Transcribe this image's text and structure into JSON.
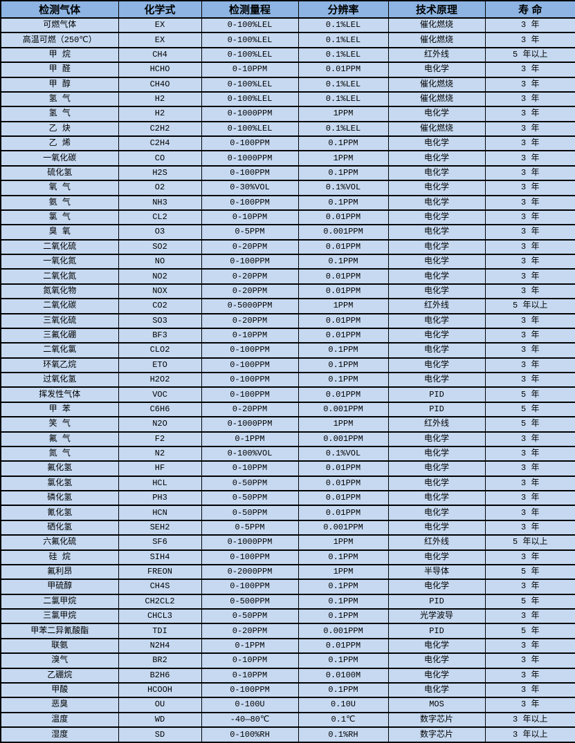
{
  "colors": {
    "header_bg": "#8DB4E2",
    "row_bg": "#C6D9F1",
    "border": "#000000",
    "text": "#000000"
  },
  "table": {
    "columns": [
      "检测气体",
      "化学式",
      "检测量程",
      "分辨率",
      "技术原理",
      "寿 命"
    ],
    "rows": [
      [
        "可燃气体",
        "EX",
        "0-100%LEL",
        "0.1%LEL",
        "催化燃烧",
        "3 年"
      ],
      [
        "高温可燃（250℃）",
        "EX",
        "0-100%LEL",
        "0.1%LEL",
        "催化燃烧",
        "3 年"
      ],
      [
        "甲 烷",
        "CH4",
        "0-100%LEL",
        "0.1%LEL",
        "红外线",
        "5 年以上"
      ],
      [
        "甲 醛",
        "HCHO",
        "0-10PPM",
        "0.01PPM",
        "电化学",
        "3 年"
      ],
      [
        "甲 醇",
        "CH4O",
        "0-100%LEL",
        "0.1%LEL",
        "催化燃烧",
        "3 年"
      ],
      [
        "氢 气",
        "H2",
        "0-100%LEL",
        "0.1%LEL",
        "催化燃烧",
        "3 年"
      ],
      [
        "氢 气",
        "H2",
        "0-1000PPM",
        "1PPM",
        "电化学",
        "3 年"
      ],
      [
        "乙 炔",
        "C2H2",
        "0-100%LEL",
        "0.1%LEL",
        "催化燃烧",
        "3 年"
      ],
      [
        "乙 烯",
        "C2H4",
        "0-100PPM",
        "0.1PPM",
        "电化学",
        "3 年"
      ],
      [
        "一氧化碳",
        "CO",
        "0-1000PPM",
        "1PPM",
        "电化学",
        "3 年"
      ],
      [
        "硫化氢",
        "H2S",
        "0-100PPM",
        "0.1PPM",
        "电化学",
        "3 年"
      ],
      [
        "氧 气",
        "O2",
        "0-30%VOL",
        "0.1%VOL",
        "电化学",
        "3 年"
      ],
      [
        "氨 气",
        "NH3",
        "0-100PPM",
        "0.1PPM",
        "电化学",
        "3 年"
      ],
      [
        "氯 气",
        "CL2",
        "0-10PPM",
        "0.01PPM",
        "电化学",
        "3 年"
      ],
      [
        "臭 氧",
        "O3",
        "0-5PPM",
        "0.001PPM",
        "电化学",
        "3 年"
      ],
      [
        "二氧化硫",
        "SO2",
        "0-20PPM",
        "0.01PPM",
        "电化学",
        "3 年"
      ],
      [
        "一氧化氮",
        "NO",
        "0-100PPM",
        "0.1PPM",
        "电化学",
        "3 年"
      ],
      [
        "二氧化氮",
        "NO2",
        "0-20PPM",
        "0.01PPM",
        "电化学",
        "3 年"
      ],
      [
        "氮氧化物",
        "NOX",
        "0-20PPM",
        "0.01PPM",
        "电化学",
        "3 年"
      ],
      [
        "二氧化碳",
        "CO2",
        "0-5000PPM",
        "1PPM",
        "红外线",
        "5 年以上"
      ],
      [
        "三氧化硫",
        "SO3",
        "0-20PPM",
        "0.01PPM",
        "电化学",
        "3 年"
      ],
      [
        "三氟化硼",
        "BF3",
        "0-10PPM",
        "0.01PPM",
        "电化学",
        "3 年"
      ],
      [
        "二氧化氯",
        "CLO2",
        "0-100PPM",
        "0.1PPM",
        "电化学",
        "3 年"
      ],
      [
        "环氧乙烷",
        "ETO",
        "0-100PPM",
        "0.1PPM",
        "电化学",
        "3 年"
      ],
      [
        "过氧化氢",
        "H2O2",
        "0-100PPM",
        "0.1PPM",
        "电化学",
        "3 年"
      ],
      [
        "挥发性气体",
        "VOC",
        "0-100PPM",
        "0.01PPM",
        "PID",
        "5 年"
      ],
      [
        "甲 苯",
        "C6H6",
        "0-20PPM",
        "0.001PPM",
        "PID",
        "5 年"
      ],
      [
        "笑 气",
        "N2O",
        "0-1000PPM",
        "1PPM",
        "红外线",
        "5 年"
      ],
      [
        "氟 气",
        "F2",
        "0-1PPM",
        "0.001PPM",
        "电化学",
        "3 年"
      ],
      [
        "氮 气",
        "N2",
        "0-100%VOL",
        "0.1%VOL",
        "电化学",
        "3 年"
      ],
      [
        "氟化氢",
        "HF",
        "0-10PPM",
        "0.01PPM",
        "电化学",
        "3 年"
      ],
      [
        "氯化氢",
        "HCL",
        "0-50PPM",
        "0.01PPM",
        "电化学",
        "3 年"
      ],
      [
        "磷化氢",
        "PH3",
        "0-50PPM",
        "0.01PPM",
        "电化学",
        "3 年"
      ],
      [
        "氰化氢",
        "HCN",
        "0-50PPM",
        "0.01PPM",
        "电化学",
        "3 年"
      ],
      [
        "硒化氢",
        "SEH2",
        "0-5PPM",
        "0.001PPM",
        "电化学",
        "3 年"
      ],
      [
        "六氟化硫",
        "SF6",
        "0-1000PPM",
        "1PPM",
        "红外线",
        "5 年以上"
      ],
      [
        "硅 烷",
        "SIH4",
        "0-100PPM",
        "0.1PPM",
        "电化学",
        "3 年"
      ],
      [
        "氟利昂",
        "FREON",
        "0-2000PPM",
        "1PPM",
        "半导体",
        "5 年"
      ],
      [
        "甲硫醇",
        "CH4S",
        "0-100PPM",
        "0.1PPM",
        "电化学",
        "3 年"
      ],
      [
        "二氯甲烷",
        "CH2CL2",
        "0-500PPM",
        "0.1PPM",
        "PID",
        "5 年"
      ],
      [
        "三氯甲烷",
        "CHCL3",
        "0-50PPM",
        "0.1PPM",
        "光学波导",
        "3 年"
      ],
      [
        "甲苯二异氰酸酯",
        "TDI",
        "0-20PPM",
        "0.001PPM",
        "PID",
        "5 年"
      ],
      [
        "联氨",
        "N2H4",
        "0-1PPM",
        "0.01PPM",
        "电化学",
        "3 年"
      ],
      [
        "溴气",
        "BR2",
        "0-10PPM",
        "0.1PPM",
        "电化学",
        "3 年"
      ],
      [
        "乙硼烷",
        "B2H6",
        "0-10PPM",
        "0.0100M",
        "电化学",
        "3 年"
      ],
      [
        "甲酸",
        "HCOOH",
        "0-100PPM",
        "0.1PPM",
        "电化学",
        "3 年"
      ],
      [
        "恶臭",
        "OU",
        "0-100U",
        "0.10U",
        "MOS",
        "3 年"
      ],
      [
        "温度",
        "WD",
        "-40—80℃",
        "0.1℃",
        "数字芯片",
        "3 年以上"
      ],
      [
        "湿度",
        "SD",
        "0-100%RH",
        "0.1%RH",
        "数字芯片",
        "3 年以上"
      ]
    ]
  }
}
